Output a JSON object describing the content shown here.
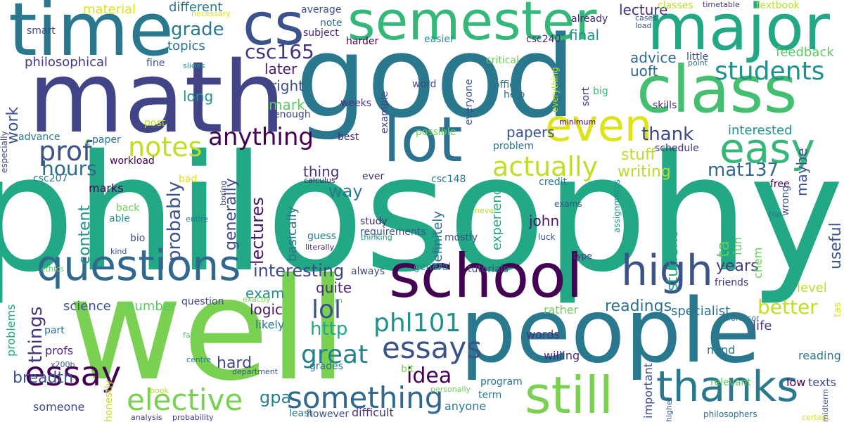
{
  "words": [
    {
      "text": "philosophy",
      "color": "#22a884"
    },
    {
      "text": "well",
      "color": "#7ad151"
    },
    {
      "text": "good",
      "color": "#2a788e"
    },
    {
      "text": "math",
      "color": "#414487"
    },
    {
      "text": "people",
      "color": "#2a788e"
    },
    {
      "text": "time",
      "color": "#2a788e"
    },
    {
      "text": "school",
      "color": "#440154"
    },
    {
      "text": "major",
      "color": "#22a884"
    },
    {
      "text": "class",
      "color": "#44bf70"
    },
    {
      "text": "semester",
      "color": "#35b779"
    },
    {
      "text": "cs",
      "color": "#3b528b"
    },
    {
      "text": "lot",
      "color": "#2c728e"
    },
    {
      "text": "questions",
      "color": "#31688e"
    },
    {
      "text": "still",
      "color": "#7ad151"
    },
    {
      "text": "thanks",
      "color": "#2a788e"
    },
    {
      "text": "high",
      "color": "#3b528b"
    },
    {
      "text": "even",
      "color": "#dde318"
    },
    {
      "text": "easy",
      "color": "#35b779"
    },
    {
      "text": "essays",
      "color": "#3b528b"
    },
    {
      "text": "elective",
      "color": "#7ad151"
    },
    {
      "text": "something",
      "color": "#31688e"
    },
    {
      "text": "essay",
      "color": "#440154"
    },
    {
      "text": "prof",
      "color": "#3b528b"
    },
    {
      "text": "notes",
      "color": "#bddf26"
    },
    {
      "text": "actually",
      "color": "#bddf26"
    },
    {
      "text": "anything",
      "color": "#440154"
    },
    {
      "text": "phl101",
      "color": "#21918c"
    },
    {
      "text": "great",
      "color": "#26828e"
    },
    {
      "text": "lol",
      "color": "#3b528b"
    },
    {
      "text": "idea",
      "color": "#440154"
    },
    {
      "text": "hours",
      "color": "#31688e"
    },
    {
      "text": "students",
      "color": "#21918c"
    },
    {
      "text": "csc165",
      "color": "#46327e"
    },
    {
      "text": "grade",
      "color": "#2a788e"
    },
    {
      "text": "thank",
      "color": "#3e4989"
    },
    {
      "text": "interesting",
      "color": "#3e4989"
    },
    {
      "text": "lectures",
      "color": "#48186a"
    },
    {
      "text": "probably",
      "color": "#3b528b"
    },
    {
      "text": "mat137",
      "color": "#31688e"
    },
    {
      "text": "better",
      "color": "#bddf26"
    },
    {
      "text": "readings",
      "color": "#2c728e"
    },
    {
      "text": "things",
      "color": "#46327e"
    },
    {
      "text": "gpa",
      "color": "#26828e"
    },
    {
      "text": "content",
      "color": "#21918c"
    },
    {
      "text": "breadth",
      "color": "#3b528b"
    },
    {
      "text": "http",
      "color": "#21a685"
    },
    {
      "text": "years",
      "color": "#443983"
    },
    {
      "text": "hard",
      "color": "#3e4989"
    },
    {
      "text": "ta",
      "color": "#5ec962"
    },
    {
      "text": "generally",
      "color": "#3e4989"
    },
    {
      "text": "writing",
      "color": "#b5de2b"
    },
    {
      "text": "stuff",
      "color": "#bddf26"
    },
    {
      "text": "way",
      "color": "#2a788e"
    },
    {
      "text": "work",
      "color": "#3b528b"
    },
    {
      "text": "experience",
      "color": "#21a685"
    },
    {
      "text": "student",
      "color": "#21a685"
    },
    {
      "text": "useful",
      "color": "#3b528b"
    },
    {
      "text": "interested",
      "color": "#21918c"
    },
    {
      "text": "advice",
      "color": "#31688e"
    },
    {
      "text": "uoft",
      "color": "#31688e"
    },
    {
      "text": "lecture",
      "color": "#46327e"
    },
    {
      "text": "topics",
      "color": "#2c728e"
    },
    {
      "text": "mark",
      "color": "#5ec962"
    },
    {
      "text": "john",
      "color": "#48186a"
    },
    {
      "text": "logic",
      "color": "#48186a"
    },
    {
      "text": "exam",
      "color": "#21918c"
    },
    {
      "text": "later",
      "color": "#48186a"
    },
    {
      "text": "right",
      "color": "#3b528b"
    },
    {
      "text": "long",
      "color": "#21918c"
    },
    {
      "text": "final",
      "color": "#21918c"
    },
    {
      "text": "thing",
      "color": "#46327e"
    },
    {
      "text": "papers",
      "color": "#3b528b"
    },
    {
      "text": "maybe",
      "color": "#3b528b"
    },
    {
      "text": "quite",
      "color": "#482878"
    },
    {
      "text": "basically",
      "color": "#2c728e"
    },
    {
      "text": "definitely",
      "color": "#2c728e"
    },
    {
      "text": "level",
      "color": "#bddf26"
    },
    {
      "text": "feedback",
      "color": "#5ec962"
    },
    {
      "text": "specialist",
      "color": "#2c728e"
    },
    {
      "text": "philosophical",
      "color": "#443983"
    },
    {
      "text": "different",
      "color": "#2a788e"
    },
    {
      "text": "material",
      "color": "#dde318"
    },
    {
      "text": "science",
      "color": "#3b528b"
    },
    {
      "text": "number",
      "color": "#5ec962"
    },
    {
      "text": "life",
      "color": "#443983"
    },
    {
      "text": "reading",
      "color": "#2a788e"
    },
    {
      "text": "texts",
      "color": "#3e4989"
    },
    {
      "text": "low",
      "color": "#440154"
    },
    {
      "text": "mind",
      "color": "#2a788e"
    },
    {
      "text": "willing",
      "color": "#482878"
    },
    {
      "text": "words",
      "color": "#46327e"
    },
    {
      "text": "rather",
      "color": "#6ccd5a"
    },
    {
      "text": "anyone",
      "color": "#2a788e"
    },
    {
      "text": "term",
      "color": "#26828e"
    },
    {
      "text": "program",
      "color": "#2c728e"
    },
    {
      "text": "important",
      "color": "#3e4989"
    },
    {
      "text": "relevant",
      "color": "#5ec962"
    },
    {
      "text": "friends",
      "color": "#46327e"
    },
    {
      "text": "tas",
      "color": "#dde318"
    },
    {
      "text": "fun",
      "color": "#5ec962"
    },
    {
      "text": "chem",
      "color": "#6ccd5a"
    },
    {
      "text": "marks",
      "color": "#440154"
    },
    {
      "text": "grades",
      "color": "#2c728e"
    },
    {
      "text": "profs",
      "color": "#482878"
    },
    {
      "text": "problems",
      "color": "#21a685"
    },
    {
      "text": "someone",
      "color": "#3e4989"
    },
    {
      "text": "difficult",
      "color": "#46327e"
    },
    {
      "text": "likely",
      "color": "#2a788e"
    },
    {
      "text": "tutorials",
      "color": "#3b528b"
    },
    {
      "text": "general",
      "color": "#21918c"
    },
    {
      "text": "always",
      "color": "#3e4989"
    },
    {
      "text": "mostly",
      "color": "#3b528b"
    },
    {
      "text": "guess",
      "color": "#2a788e"
    },
    {
      "text": "study",
      "color": "#482878"
    },
    {
      "text": "requirements",
      "color": "#3b528b"
    },
    {
      "text": "bio",
      "color": "#3b528b"
    },
    {
      "text": "part",
      "color": "#2c728e"
    },
    {
      "text": "smart",
      "color": "#3e4989"
    },
    {
      "text": "subject",
      "color": "#482878"
    },
    {
      "text": "average",
      "color": "#3b528b"
    },
    {
      "text": "note",
      "color": "#31688e"
    },
    {
      "text": "harder",
      "color": "#440154"
    },
    {
      "text": "easier",
      "color": "#21918c"
    },
    {
      "text": "critical",
      "color": "#6ccd5a"
    },
    {
      "text": "csc240",
      "color": "#482878"
    },
    {
      "text": "already",
      "color": "#482878"
    },
    {
      "text": "classes",
      "color": "#b5de2b"
    },
    {
      "text": "textbook",
      "color": "#b5de2b"
    },
    {
      "text": "word",
      "color": "#3e4989"
    },
    {
      "text": "office",
      "color": "#2c728e"
    },
    {
      "text": "help",
      "color": "#2c728e"
    },
    {
      "text": "everyone",
      "color": "#3b528b"
    },
    {
      "text": "little",
      "color": "#3b528b"
    },
    {
      "text": "big",
      "color": "#35b779"
    },
    {
      "text": "skills",
      "color": "#482878"
    },
    {
      "text": "sort",
      "color": "#443983"
    },
    {
      "text": "weeks",
      "color": "#46327e"
    },
    {
      "text": "enough",
      "color": "#3e4989"
    },
    {
      "text": "example",
      "color": "#3e4989"
    },
    {
      "text": "best",
      "color": "#482878"
    },
    {
      "text": "possible",
      "color": "#6ccd5a"
    },
    {
      "text": "problem",
      "color": "#2c728e"
    },
    {
      "text": "credit",
      "color": "#2a788e"
    },
    {
      "text": "schedule",
      "color": "#46327e"
    },
    {
      "text": "csc148",
      "color": "#2a788e"
    },
    {
      "text": "csc207",
      "color": "#2a788e"
    },
    {
      "text": "advance",
      "color": "#2a788e"
    },
    {
      "text": "workload",
      "color": "#440154"
    },
    {
      "text": "paper",
      "color": "#2c728e"
    },
    {
      "text": "especially",
      "color": "#3e4989"
    },
    {
      "text": "fine",
      "color": "#3b528b"
    },
    {
      "text": "post",
      "color": "#bddf26"
    },
    {
      "text": "bad",
      "color": "#dde318"
    },
    {
      "text": "back",
      "color": "#6ccd5a"
    },
    {
      "text": "able",
      "color": "#21918c"
    },
    {
      "text": "ever",
      "color": "#46327e"
    },
    {
      "text": "question",
      "color": "#3e4989"
    },
    {
      "text": "free",
      "color": "#440154"
    },
    {
      "text": "wrong",
      "color": "#3b528b"
    },
    {
      "text": "assignments",
      "color": "#21918c"
    },
    {
      "text": "exams",
      "color": "#3b528b"
    },
    {
      "text": "luck",
      "color": "#3b528b"
    },
    {
      "text": "type",
      "color": "#443983"
    },
    {
      "text": "everything",
      "color": "#b5de2b"
    },
    {
      "text": "minimum",
      "color": "#440154"
    },
    {
      "text": "timetable",
      "color": "#443983"
    },
    {
      "text": "cases",
      "color": "#3b528b"
    },
    {
      "text": "load",
      "color": "#3b528b"
    },
    {
      "text": "necessary",
      "color": "#dde318"
    },
    {
      "text": "slides",
      "color": "#21918c"
    },
    {
      "text": "point",
      "color": "#2c728e"
    },
    {
      "text": "calculus",
      "color": "#482878"
    },
    {
      "text": "thinking",
      "color": "#21918c"
    },
    {
      "text": "literally",
      "color": "#482878"
    },
    {
      "text": "kind",
      "color": "#3b528b"
    },
    {
      "text": "ethics",
      "color": "#5ec962"
    },
    {
      "text": "entire",
      "color": "#2c728e"
    },
    {
      "text": "boring",
      "color": "#3e4989"
    },
    {
      "text": "never",
      "color": "#b5de2b"
    },
    {
      "text": "top",
      "color": "#2a788e"
    },
    {
      "text": "exactly",
      "color": "#7ad151"
    },
    {
      "text": "jim",
      "color": "#5ec962"
    },
    {
      "text": "fair",
      "color": "#5ec962"
    },
    {
      "text": "centre",
      "color": "#2a788e"
    },
    {
      "text": "department",
      "color": "#3b528b"
    },
    {
      "text": "x200b",
      "color": "#3b528b"
    },
    {
      "text": "honestly",
      "color": "#bddf26"
    },
    {
      "text": "book",
      "color": "#b5de2b"
    },
    {
      "text": "analysis",
      "color": "#46327e"
    },
    {
      "text": "probability",
      "color": "#443983"
    },
    {
      "text": "least",
      "color": "#2c728e"
    },
    {
      "text": "however",
      "color": "#3b528b"
    },
    {
      "text": "bit",
      "color": "#7ad151"
    },
    {
      "text": "personally",
      "color": "#6ccd5a"
    },
    {
      "text": "higher",
      "color": "#3b528b"
    },
    {
      "text": "philosophers",
      "color": "#2c728e"
    },
    {
      "text": "professor",
      "color": "#2c728e"
    },
    {
      "text": "certain",
      "color": "#dde318"
    },
    {
      "text": "midterm",
      "color": "#3b528b"
    },
    {
      "text": "c",
      "color": "#7ad151"
    }
  ]
}
